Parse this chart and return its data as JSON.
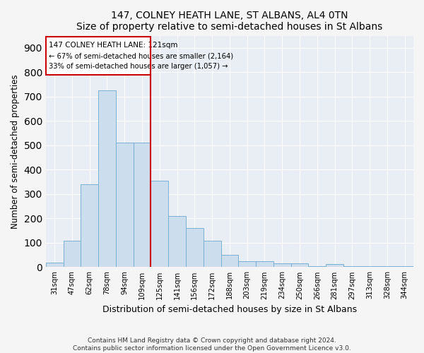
{
  "title": "147, COLNEY HEATH LANE, ST ALBANS, AL4 0TN",
  "subtitle": "Size of property relative to semi-detached houses in St Albans",
  "xlabel": "Distribution of semi-detached houses by size in St Albans",
  "ylabel": "Number of semi-detached properties",
  "footer_line1": "Contains HM Land Registry data © Crown copyright and database right 2024.",
  "footer_line2": "Contains public sector information licensed under the Open Government Licence v3.0.",
  "annotation_title": "147 COLNEY HEATH LANE: 121sqm",
  "annotation_line1": "← 67% of semi-detached houses are smaller (2,164)",
  "annotation_line2": "33% of semi-detached houses are larger (1,057) →",
  "bar_color": "#ccdded",
  "bar_edge_color": "#7ab0d4",
  "highlight_color": "#cc0000",
  "background_color": "#e8eef4",
  "annotation_box_color": "#ffffff",
  "annotation_border_color": "#cc0000",
  "grid_color": "#ffffff",
  "categories": [
    "31sqm",
    "47sqm",
    "62sqm",
    "78sqm",
    "94sqm",
    "109sqm",
    "125sqm",
    "141sqm",
    "156sqm",
    "172sqm",
    "188sqm",
    "203sqm",
    "219sqm",
    "234sqm",
    "250sqm",
    "266sqm",
    "281sqm",
    "297sqm",
    "313sqm",
    "328sqm",
    "344sqm"
  ],
  "values": [
    20,
    108,
    340,
    725,
    510,
    510,
    355,
    210,
    160,
    108,
    50,
    25,
    25,
    15,
    15,
    5,
    12,
    5,
    5,
    5,
    3
  ],
  "highlight_bin_index": 6,
  "ylim": [
    0,
    950
  ],
  "yticks": [
    0,
    100,
    200,
    300,
    400,
    500,
    600,
    700,
    800,
    900
  ]
}
